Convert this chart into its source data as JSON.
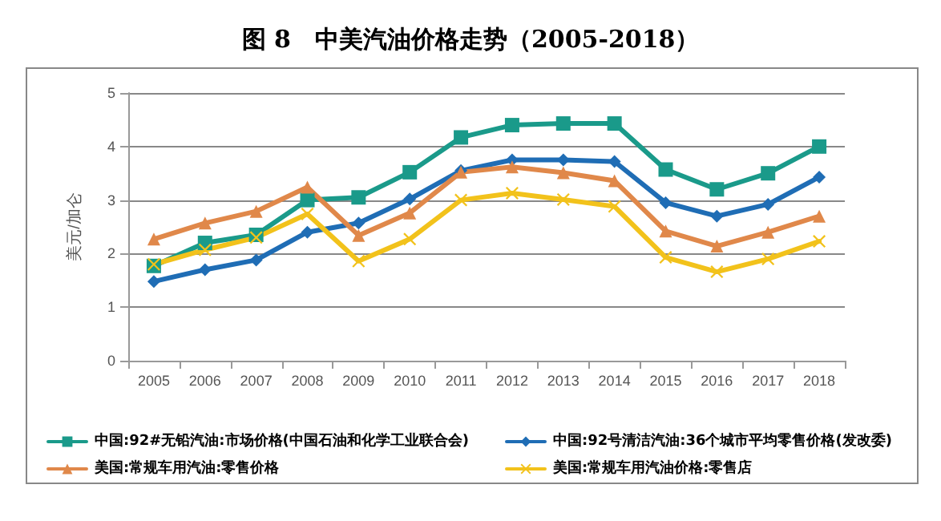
{
  "chart_data": {
    "type": "line",
    "title": "图 8　中美汽油价格走势（2005-2018）",
    "ylabel": "美元/加仑",
    "categories": [
      "2005",
      "2006",
      "2007",
      "2008",
      "2009",
      "2010",
      "2011",
      "2012",
      "2013",
      "2014",
      "2015",
      "2016",
      "2017",
      "2018"
    ],
    "series": [
      {
        "name": "中国:92#无铅汽油:市场价格(中国石油和化学工业联合会)",
        "color": "#1a9a8a",
        "marker": "square",
        "values": [
          1.77,
          2.2,
          2.35,
          3.0,
          3.05,
          3.52,
          4.17,
          4.4,
          4.43,
          4.43,
          3.57,
          3.2,
          3.5,
          4.0
        ]
      },
      {
        "name": "中国:92号清洁汽油:36个城市平均零售价格(发改委)",
        "color": "#1f6db5",
        "marker": "diamond",
        "values": [
          1.48,
          1.7,
          1.88,
          2.4,
          2.57,
          3.02,
          3.55,
          3.75,
          3.75,
          3.72,
          2.95,
          2.7,
          2.92,
          3.43
        ]
      },
      {
        "name": "美国:常规车用汽油:零售价格",
        "color": "#e0884a",
        "marker": "triangle",
        "values": [
          2.27,
          2.57,
          2.79,
          3.24,
          2.34,
          2.76,
          3.52,
          3.62,
          3.51,
          3.36,
          2.42,
          2.14,
          2.4,
          2.7
        ]
      },
      {
        "name": "美国:常规车用汽油价格:零售店",
        "color": "#f2c21b",
        "marker": "cross",
        "values": [
          1.8,
          2.07,
          2.3,
          2.74,
          1.86,
          2.27,
          3.0,
          3.13,
          3.01,
          2.88,
          1.93,
          1.66,
          1.9,
          2.23
        ]
      }
    ],
    "ylim": [
      0,
      5
    ],
    "yticks": [
      0,
      1,
      2,
      3,
      4,
      5
    ],
    "grid": "y",
    "legend": "bottom"
  }
}
